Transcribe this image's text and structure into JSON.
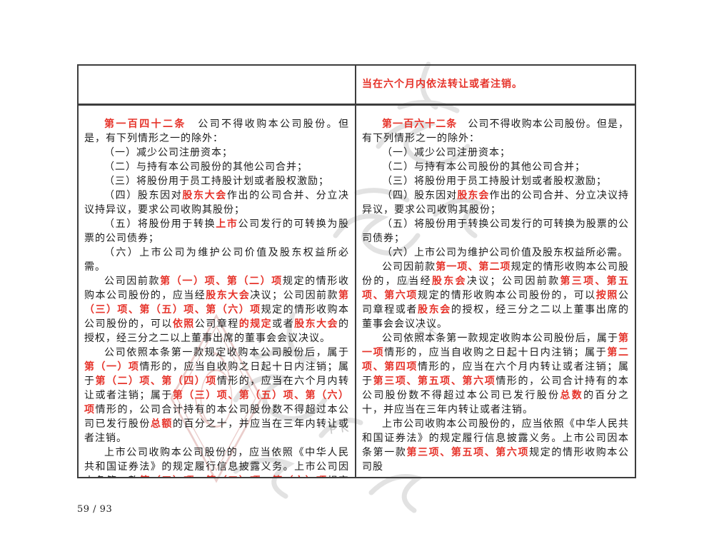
{
  "colors": {
    "red": "#e6332a",
    "border": "#3d3d3d",
    "text": "#1a1a1a"
  },
  "footer": {
    "page_indicator": "59 / 93"
  },
  "watermark": {
    "letters": [
      "w",
      "S K",
      "P K"
    ]
  },
  "table": {
    "row1": {
      "left_text": "",
      "right_text": "当在六个月内依法转让或者注销。"
    },
    "left_column": {
      "paragraphs": [
        [
          {
            "t": "第一百四十二条",
            "red": true
          },
          {
            "t": "　公司不得收购本公司股份。但是，有下列情形之一的除外：",
            "red": false
          }
        ],
        [
          {
            "t": "（一）减少公司注册资本；",
            "red": false
          }
        ],
        [
          {
            "t": "（二）与持有本公司股份的其他公司合并；",
            "red": false
          }
        ],
        [
          {
            "t": "（三）将股份用于员工持股计划或者股权激励；",
            "red": false
          }
        ],
        [
          {
            "t": "（四）股东因对",
            "red": false
          },
          {
            "t": "股东大会",
            "red": true
          },
          {
            "t": "作出的公司合并、分立决议持异议，要求公司收购其股份；",
            "red": false
          }
        ],
        [
          {
            "t": "（五）将股份用于转换",
            "red": false
          },
          {
            "t": "上市",
            "red": true
          },
          {
            "t": "公司发行的可转换为股票的公司债券；",
            "red": false
          }
        ],
        [
          {
            "t": "（六）上市公司为维护公司价值及股东权益所必需。",
            "red": false
          }
        ],
        [
          {
            "t": "公司因前款",
            "red": false
          },
          {
            "t": "第（一）项、第（二）项",
            "red": true
          },
          {
            "t": "规定的情形收购本公司股份的，应当经",
            "red": false
          },
          {
            "t": "股东大会",
            "red": true
          },
          {
            "t": "决议；公司因前款",
            "red": false
          },
          {
            "t": "第（三）项、第（五）项、第（六）项",
            "red": true
          },
          {
            "t": "规定的情形收购本公司股份的，可以",
            "red": false
          },
          {
            "t": "依照",
            "red": true
          },
          {
            "t": "公司章程",
            "red": false
          },
          {
            "t": "的规定",
            "red": true
          },
          {
            "t": "或者",
            "red": false
          },
          {
            "t": "股东大会",
            "red": true
          },
          {
            "t": "的授权，经三分之二以上董事出席的董事会会议决议。",
            "red": false
          }
        ],
        [
          {
            "t": "公司依照本条第一款规定收购本公司股份后，属于",
            "red": false
          },
          {
            "t": "第（一）项",
            "red": true
          },
          {
            "t": "情形的，应当自收购之日起十日内注销；属于",
            "red": false
          },
          {
            "t": "第（二）项、第（四）项",
            "red": true
          },
          {
            "t": "情形的，应当在六个月内转让或者注销；属于",
            "red": false
          },
          {
            "t": "第（三）项、第（五）项、第（六）项",
            "red": true
          },
          {
            "t": "情形的，公司合计持有的本公司股份数不得超过本公司已发行股份",
            "red": false
          },
          {
            "t": "总额",
            "red": true
          },
          {
            "t": "的百分之十，并应当在三年内转让或者注销。",
            "red": false
          }
        ],
        [
          {
            "t": "上市公司收购本公司股份的，应当依照《中华人民共和国证券法》的规定履行信息披露义务。上市公司因本条第一款",
            "red": false
          },
          {
            "t": "第（三）项、第（五）项、第（六）项",
            "red": true
          },
          {
            "t": "规定的情形",
            "red": false
          }
        ]
      ]
    },
    "right_column": {
      "paragraphs": [
        [
          {
            "t": "第一百六十二条",
            "red": true
          },
          {
            "t": "　公司不得收购本公司股份。但是，有下列情形之一的除外：",
            "red": false
          }
        ],
        [
          {
            "t": "（一）减少公司注册资本；",
            "red": false
          }
        ],
        [
          {
            "t": "（二）与持有本公司股份的其他公司合并；",
            "red": false
          }
        ],
        [
          {
            "t": "（三）将股份用于员工持股计划或者股权激励；",
            "red": false
          }
        ],
        [
          {
            "t": "（四）股东因对",
            "red": false
          },
          {
            "t": "股东会",
            "red": true
          },
          {
            "t": "作出的公司合并、分立决议持异议，要求公司收购其股份；",
            "red": false
          }
        ],
        [
          {
            "t": "（五）将股份用于转换公司发行的可转换为股票的公司债券；",
            "red": false
          }
        ],
        [
          {
            "t": "（六）上市公司为维护公司价值及股东权益所必需。",
            "red": false
          }
        ],
        [
          {
            "t": "公司因前款",
            "red": false
          },
          {
            "t": "第一项、第二项",
            "red": true
          },
          {
            "t": "规定的情形收购本公司股份的，应当经",
            "red": false
          },
          {
            "t": "股东会",
            "red": true
          },
          {
            "t": "决议；公司因前款",
            "red": false
          },
          {
            "t": "第三项、第五项、第六项",
            "red": true
          },
          {
            "t": "规定的情形收购本公司股份的，可以",
            "red": false
          },
          {
            "t": "按照",
            "red": true
          },
          {
            "t": "公司章程或者",
            "red": false
          },
          {
            "t": "股东会",
            "red": true
          },
          {
            "t": "的授权，经三分之二以上董事出席的董事会会议决议。",
            "red": false
          }
        ],
        [
          {
            "t": "公司依照本条第一款规定收购本公司股份后，属于",
            "red": false
          },
          {
            "t": "第一项",
            "red": true
          },
          {
            "t": "情形的，应当自收购之日起十日内注销；属于",
            "red": false
          },
          {
            "t": "第二项、第四项",
            "red": true
          },
          {
            "t": "情形的，应当在六个月内转让或者注销；属于",
            "red": false
          },
          {
            "t": "第三项、第五项、第六项",
            "red": true
          },
          {
            "t": "情形的，公司合计持有的本公司股份数不得超过本公司已发行股份",
            "red": false
          },
          {
            "t": "总数",
            "red": true
          },
          {
            "t": "的百分之十，并应当在三年内转让或者注销。",
            "red": false
          }
        ],
        [
          {
            "t": "上市公司收购本公司股份的，应当依照《中华人民共和国证券法》的规定履行信息披露义务。上市公司因本条第一款",
            "red": false
          },
          {
            "t": "第三项、第五项、第六项",
            "red": true
          },
          {
            "t": "规定的情形收购本公司股",
            "red": false
          }
        ]
      ]
    }
  }
}
